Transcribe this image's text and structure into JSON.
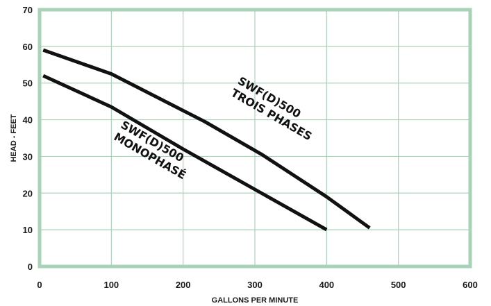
{
  "chart_data": {
    "type": "line",
    "title": "",
    "xlabel": "GALLONS PER MINUTE",
    "ylabel": "HEAD - FEET",
    "xlim": [
      0,
      600
    ],
    "ylim": [
      0,
      70
    ],
    "x_ticks": [
      "0",
      "100",
      "200",
      "300",
      "400",
      "500",
      "600"
    ],
    "y_ticks": [
      "0",
      "10",
      "20",
      "30",
      "40",
      "50",
      "60",
      "70"
    ],
    "grid": true,
    "colors": {
      "frame": "#a9d3b8",
      "grid": "#a9d3b8",
      "line": "#111111",
      "text": "#1a1a1a"
    },
    "series": [
      {
        "name": "SWF(D)500 TROIS PHASES",
        "x": [
          5,
          100,
          230,
          310,
          400,
          460
        ],
        "y": [
          59,
          52.5,
          39.5,
          30.5,
          19,
          10.5
        ]
      },
      {
        "name": "SWF(D)500 MONOPHASÉ",
        "x": [
          5,
          100,
          200,
          300,
          400
        ],
        "y": [
          52,
          43.5,
          32,
          21,
          10
        ]
      }
    ],
    "annotations": [
      {
        "lines": [
          "SWF(D)500",
          "TROIS PHASES"
        ],
        "x": 275,
        "y": 50,
        "angle": 30
      },
      {
        "lines": [
          "SWF(D)500",
          "MONOPHASÉ"
        ],
        "x": 112,
        "y": 38,
        "angle": 30
      }
    ]
  }
}
